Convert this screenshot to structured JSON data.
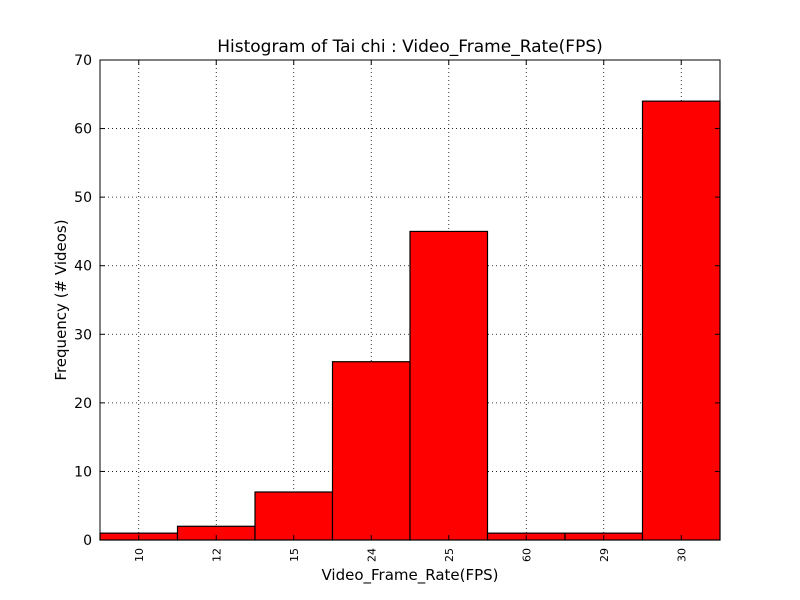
{
  "chart_data": {
    "type": "bar",
    "title": "Histogram of Tai chi : Video_Frame_Rate(FPS)",
    "xlabel": "Video_Frame_Rate(FPS)",
    "ylabel": "Frequency (# Videos)",
    "categories": [
      "10",
      "12",
      "15",
      "24",
      "25",
      "60",
      "29",
      "30"
    ],
    "values": [
      1,
      2,
      7,
      26,
      45,
      1,
      1,
      64
    ],
    "ylim": [
      0,
      70
    ],
    "yticks": [
      0,
      10,
      20,
      30,
      40,
      50,
      60,
      70
    ],
    "grid": true,
    "bar_color": "#ff0000",
    "edge_color": "#000000"
  }
}
